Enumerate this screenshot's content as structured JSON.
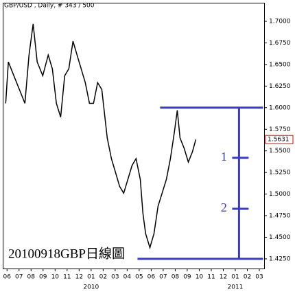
{
  "chart_data": {
    "type": "line",
    "title": "GBP/USD , Daily, # 343 / 500",
    "annotation": "20100918GBP日線圖",
    "color": "#000000",
    "level_color": "#3a3ac4",
    "x": [
      -0.11,
      0.11,
      0.57,
      1.03,
      1.49,
      1.83,
      2.17,
      2.51,
      2.97,
      3.43,
      3.77,
      4.11,
      4.46,
      4.8,
      5.14,
      5.49,
      5.83,
      6.17,
      6.51,
      6.86,
      7.2,
      7.54,
      7.89,
      8.34,
      8.69,
      9.03,
      9.37,
      9.71,
      10.06,
      10.4,
      10.74,
      11.09,
      11.31,
      11.54,
      11.89,
      12.23,
      12.57,
      12.91,
      13.26,
      13.6,
      13.94,
      14.17,
      14.4,
      14.74,
      15.09,
      15.43,
      15.71
    ],
    "values": [
      1.605,
      1.653,
      1.637,
      1.621,
      1.605,
      1.661,
      1.697,
      1.653,
      1.637,
      1.661,
      1.645,
      1.605,
      1.589,
      1.637,
      1.645,
      1.677,
      1.661,
      1.645,
      1.629,
      1.605,
      1.605,
      1.629,
      1.621,
      1.565,
      1.541,
      1.525,
      1.509,
      1.501,
      1.517,
      1.533,
      1.541,
      1.517,
      1.478,
      1.454,
      1.438,
      1.454,
      1.486,
      1.501,
      1.517,
      1.541,
      1.573,
      1.597,
      1.565,
      1.553,
      1.537,
      1.549,
      1.5631
    ],
    "xlim": [
      -0.3,
      21.4
    ],
    "ylim": [
      1.4138,
      1.7207
    ],
    "xticks": [
      {
        "value": 0,
        "label": "06"
      },
      {
        "value": 1,
        "label": "07"
      },
      {
        "value": 2,
        "label": "08"
      },
      {
        "value": 3,
        "label": "09"
      },
      {
        "value": 4,
        "label": "10"
      },
      {
        "value": 5,
        "label": "11"
      },
      {
        "value": 6,
        "label": "12"
      },
      {
        "value": 7,
        "label": "01"
      },
      {
        "value": 8,
        "label": "02"
      },
      {
        "value": 9,
        "label": "03"
      },
      {
        "value": 10,
        "label": "04"
      },
      {
        "value": 11,
        "label": "05"
      },
      {
        "value": 12,
        "label": "06"
      },
      {
        "value": 13,
        "label": "07"
      },
      {
        "value": 14,
        "label": "08"
      },
      {
        "value": 15,
        "label": "09"
      },
      {
        "value": 16,
        "label": "10"
      },
      {
        "value": 17,
        "label": "11"
      },
      {
        "value": 18,
        "label": "12"
      },
      {
        "value": 19,
        "label": "01"
      },
      {
        "value": 20,
        "label": "02"
      },
      {
        "value": 21,
        "label": "03"
      }
    ],
    "year_labels": [
      {
        "value": 7,
        "label": "2010"
      },
      {
        "value": 19,
        "label": "2011"
      }
    ],
    "yticks": [
      {
        "value": 1.425,
        "label": "1.4250"
      },
      {
        "value": 1.45,
        "label": "1.4500"
      },
      {
        "value": 1.475,
        "label": "1.4750"
      },
      {
        "value": 1.5,
        "label": "1.5000"
      },
      {
        "value": 1.525,
        "label": "1.5250"
      },
      {
        "value": 1.55,
        "label": "1.5500"
      },
      {
        "value": 1.575,
        "label": "1.5750"
      },
      {
        "value": 1.6,
        "label": "1.6000"
      },
      {
        "value": 1.625,
        "label": "1.6250"
      },
      {
        "value": 1.65,
        "label": "1.6500"
      },
      {
        "value": 1.675,
        "label": "1.6750"
      },
      {
        "value": 1.7,
        "label": "1.7000"
      }
    ],
    "last_price": {
      "value": 1.5631,
      "label": "1.5631"
    },
    "hlines": [
      {
        "value": 1.6,
        "x_start": 12.74,
        "x_end": 21.31
      },
      {
        "value": 1.425,
        "x_start": 10.86,
        "x_end": 21.31
      }
    ],
    "vline": {
      "x": 19.31,
      "from": 1.425,
      "to": 1.6
    },
    "levels": [
      {
        "label": "1",
        "value": 1.542
      },
      {
        "label": "2",
        "value": 1.483
      }
    ]
  }
}
